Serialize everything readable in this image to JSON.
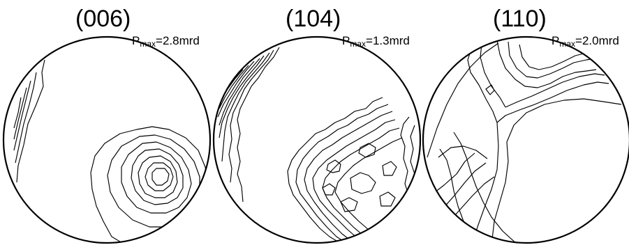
{
  "figure": {
    "colors": {
      "ink": "#000000",
      "background": "#ffffff"
    },
    "panels": [
      {
        "plane": "(006)",
        "pmax_symbol": "P",
        "pmax_subscript": "max",
        "pmax_value": "=2.8mrd"
      },
      {
        "plane": "(104)",
        "pmax_symbol": "P",
        "pmax_subscript": "max",
        "pmax_value": "=1.3mrd"
      },
      {
        "plane": "(110)",
        "pmax_symbol": "P",
        "pmax_subscript": "max",
        "pmax_value": "=2.0mrd"
      }
    ]
  }
}
